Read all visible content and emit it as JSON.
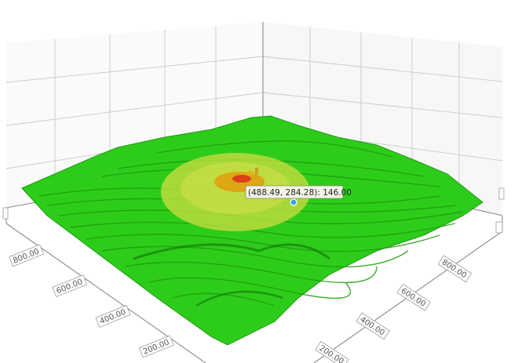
{
  "chart_data": {
    "type": "surface",
    "colors": {
      "base": "#2ecc1a",
      "base_dark": "#1f9d10",
      "ring": "#c8dc40",
      "ring_inner": "#e0a010",
      "peak": "#d8401a",
      "marker": "#3aa0e8"
    },
    "x_ticks": [
      "200.00",
      "400.00",
      "600.00",
      "800.00"
    ],
    "y_ticks": [
      "200.00",
      "400.00",
      "600.00",
      "800.00"
    ],
    "tooltip": {
      "text": "(488.49, 284.28): 146.00",
      "x": 488.49,
      "y": 284.28,
      "z": 146.0
    },
    "grid": true
  }
}
